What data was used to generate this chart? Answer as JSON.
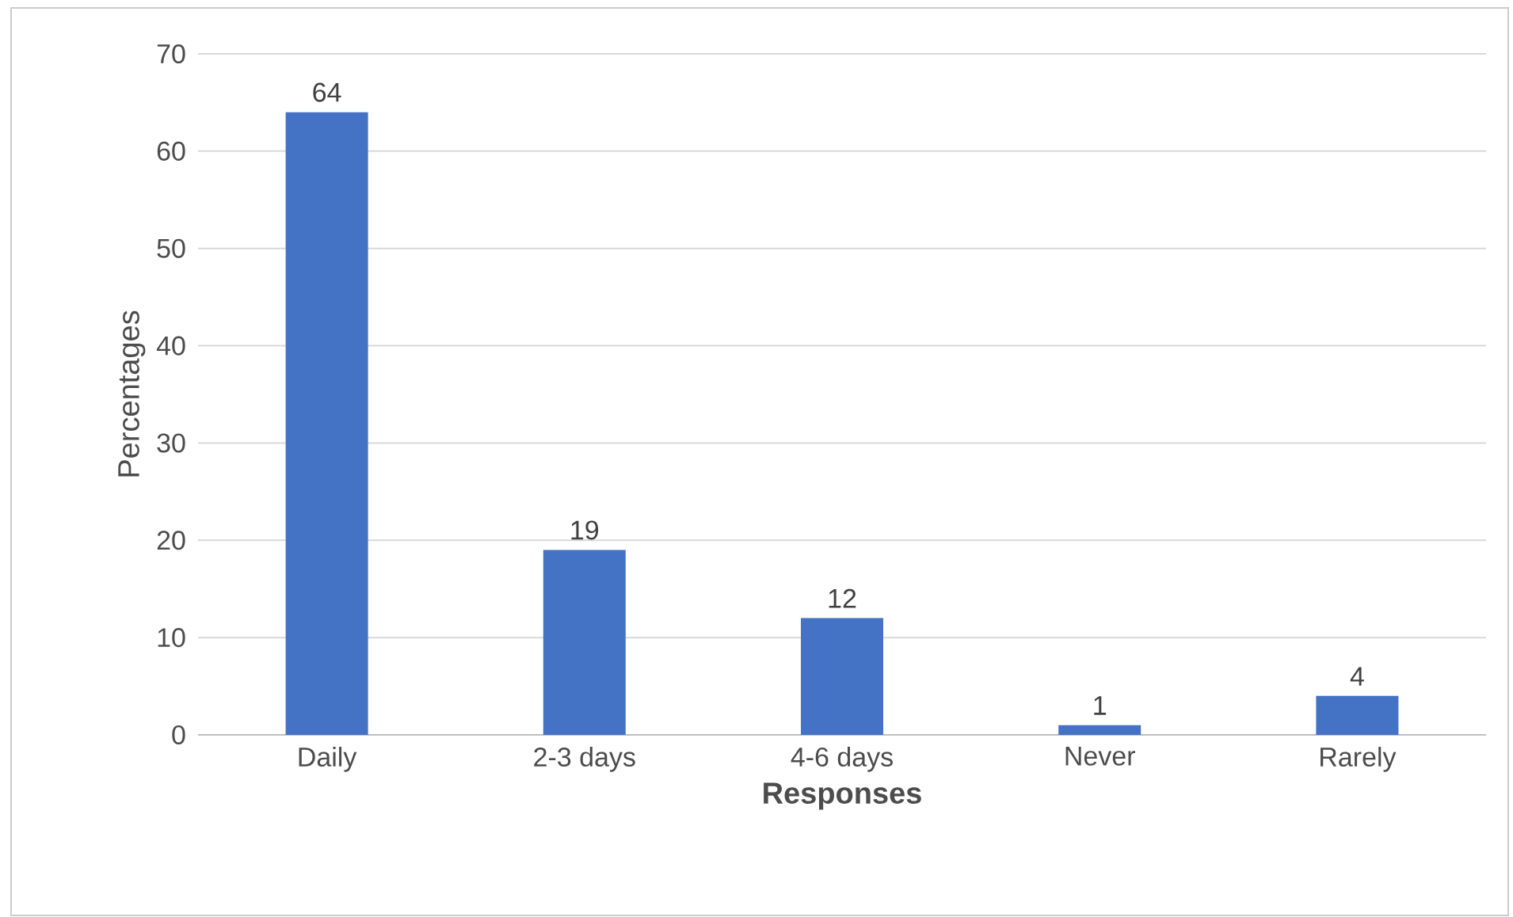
{
  "chart_data": {
    "type": "bar",
    "xlabel": "Responses",
    "ylabel": "Percentages",
    "categories": [
      "Daily",
      "2-3 days",
      "4-6 days",
      "Never",
      "Rarely"
    ],
    "values": [
      64,
      19,
      12,
      1,
      4
    ],
    "color": "#4472c4",
    "ylim": [
      0,
      70
    ],
    "yticks": [
      0,
      10,
      20,
      30,
      40,
      50,
      60,
      70
    ],
    "grid": "y",
    "data_labels": true
  }
}
